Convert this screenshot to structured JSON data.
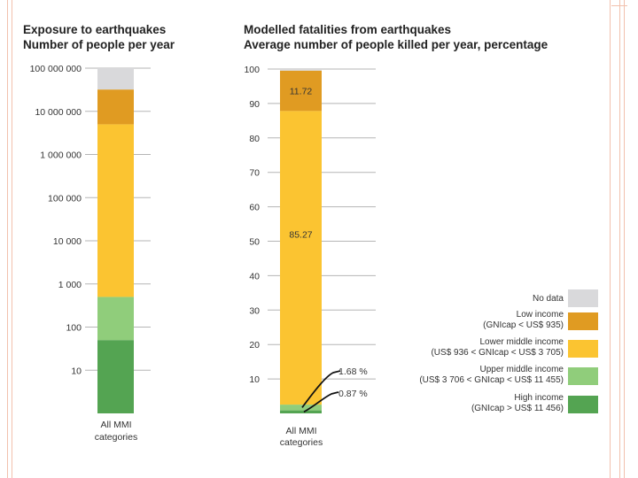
{
  "chart_data": [
    {
      "type": "bar",
      "title": "Exposure to earthquakes",
      "subtitle": "Number of people per year",
      "scale": "log",
      "ylim": [
        1,
        100000000
      ],
      "tick_values": [
        100000000,
        10000000,
        1000000,
        100000,
        10000,
        1000,
        100,
        10
      ],
      "tick_labels": [
        "100 000 000",
        "10 000 000",
        "1 000 000",
        "100 000",
        "10 000",
        "1 000",
        "100",
        "10"
      ],
      "category": "All MMI categories",
      "category_lines": [
        "All MMI",
        "categories"
      ],
      "segments": [
        {
          "name": "High income",
          "from": 1,
          "to": 50
        },
        {
          "name": "Upper middle income",
          "from": 50,
          "to": 500
        },
        {
          "name": "Lower middle income",
          "from": 500,
          "to": 5000000
        },
        {
          "name": "Low income",
          "from": 5000000,
          "to": 32000000
        },
        {
          "name": "No data",
          "from": 32000000,
          "to": 100000000
        }
      ]
    },
    {
      "type": "bar",
      "title": "Modelled fatalities from earthquakes",
      "subtitle": "Average number of people killed per year, percentage",
      "scale": "linear",
      "ylim": [
        0,
        100
      ],
      "tick_values": [
        100,
        90,
        80,
        70,
        60,
        50,
        40,
        30,
        20,
        10
      ],
      "tick_labels": [
        "100",
        "90",
        "80",
        "70",
        "60",
        "50",
        "40",
        "30",
        "20",
        "10"
      ],
      "category": "All MMI categories",
      "category_lines": [
        "All MMI",
        "categories"
      ],
      "segments": [
        {
          "name": "High income",
          "value": 0.87,
          "label": "0.87 %"
        },
        {
          "name": "Upper middle income",
          "value": 1.68,
          "label": "1.68 %"
        },
        {
          "name": "Lower middle income",
          "value": 85.27,
          "label": "85.27"
        },
        {
          "name": "Low income",
          "value": 11.72,
          "label": "11.72"
        },
        {
          "name": "No data",
          "value": 0.46
        }
      ]
    }
  ],
  "legend": [
    {
      "key": "No data",
      "lines": [
        "No data"
      ],
      "color": "#d9d9db"
    },
    {
      "key": "Low income",
      "lines": [
        "Low income",
        "(GNIcap < US$ 935)"
      ],
      "color": "#e09b22"
    },
    {
      "key": "Lower middle income",
      "lines": [
        "Lower middle income",
        "(US$ 936 < GNIcap < US$ 3 705)"
      ],
      "color": "#fbc431"
    },
    {
      "key": "Upper middle income",
      "lines": [
        "Upper middle income",
        "(US$ 3 706 < GNIcap < US$ 11 455)"
      ],
      "color": "#90cd7b"
    },
    {
      "key": "High income",
      "lines": [
        "High income",
        "(GNIcap > US$ 11 456)"
      ],
      "color": "#54a452"
    }
  ],
  "colors": {
    "No data": "#d9d9db",
    "Low income": "#e09b22",
    "Lower middle income": "#fbc431",
    "Upper middle income": "#90cd7b",
    "High income": "#54a452",
    "gridline": "#b5b5b5"
  }
}
